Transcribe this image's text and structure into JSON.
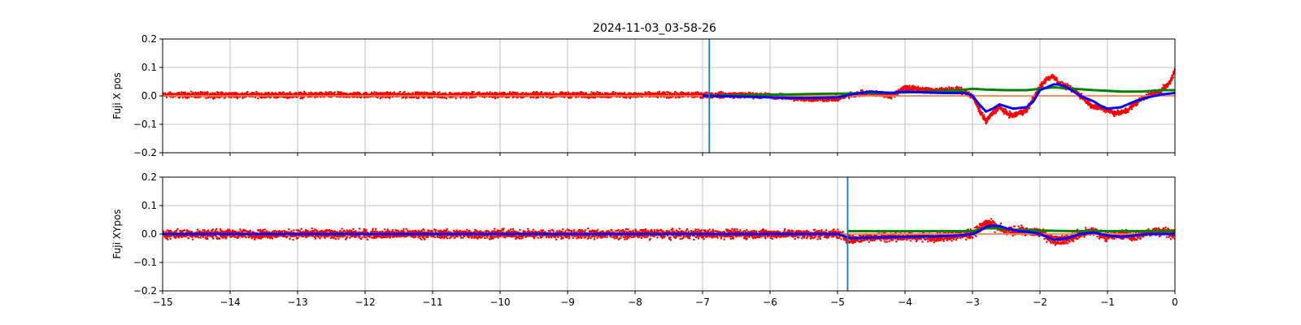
{
  "title": "2024-11-03_03-58-26",
  "chart_data": [
    {
      "type": "scatter",
      "ylabel": "Fuji X pos",
      "xlabel": "",
      "xlim": [
        -15,
        0
      ],
      "ylim": [
        -0.2,
        0.2
      ],
      "x_ticks": [
        -15,
        -14,
        -13,
        -12,
        -11,
        -10,
        -9,
        -8,
        -7,
        -6,
        -5,
        -4,
        -3,
        -2,
        -1,
        0
      ],
      "y_ticks": [
        -0.2,
        -0.1,
        0.0,
        0.1,
        0.2
      ],
      "x_tick_labels_visible": false,
      "grid": true,
      "vline": {
        "x": -6.9,
        "color": "#1f77b4"
      },
      "colors": {
        "raw": "#ff0000",
        "smooth": "#0000ff",
        "trend": "#008000",
        "baseline": "#ff7f50"
      },
      "series": [
        {
          "role": "raw",
          "noise": 0.008,
          "x": [
            -15,
            -7,
            -6.5,
            -6,
            -5.5,
            -5,
            -4.8,
            -4.5,
            -4.2,
            -4,
            -3.7,
            -3.4,
            -3.2,
            -3,
            -2.9,
            -2.8,
            -2.7,
            -2.6,
            -2.5,
            -2.4,
            -2.2,
            -2,
            -1.9,
            -1.8,
            -1.7,
            -1.6,
            -1.5,
            -1.4,
            -1.3,
            -1.2,
            -1.1,
            -1,
            -0.9,
            -0.8,
            -0.7,
            -0.6,
            -0.5,
            -0.4,
            -0.3,
            -0.2,
            -0.1,
            -0.05,
            0
          ],
          "y": [
            0.003,
            0.003,
            0.003,
            0.0,
            -0.01,
            -0.01,
            0.005,
            0.01,
            0.0,
            0.03,
            0.02,
            0.02,
            0.02,
            0.0,
            -0.05,
            -0.09,
            -0.06,
            -0.04,
            -0.06,
            -0.07,
            -0.05,
            0.03,
            0.06,
            0.07,
            0.04,
            0.03,
            0.02,
            0.0,
            -0.02,
            -0.04,
            -0.04,
            -0.05,
            -0.06,
            -0.06,
            -0.05,
            -0.03,
            -0.01,
            0.0,
            0.01,
            0.02,
            0.04,
            0.06,
            0.09
          ]
        },
        {
          "role": "smooth",
          "x": [
            -7,
            -6.5,
            -6,
            -5.5,
            -5,
            -4.8,
            -4.5,
            -4.2,
            -4,
            -3.7,
            -3.4,
            -3.1,
            -3,
            -2.9,
            -2.8,
            -2.7,
            -2.6,
            -2.4,
            -2.2,
            -2.1,
            -2,
            -1.8,
            -1.7,
            -1.6,
            -1.4,
            -1.2,
            -1.1,
            -1,
            -0.8,
            -0.6,
            -0.4,
            -0.2,
            0
          ],
          "y": [
            0.0,
            -0.002,
            -0.005,
            -0.008,
            -0.005,
            0.005,
            0.015,
            0.01,
            0.015,
            0.012,
            0.01,
            0.01,
            0.0,
            -0.03,
            -0.055,
            -0.045,
            -0.03,
            -0.045,
            -0.04,
            -0.02,
            0.02,
            0.04,
            0.04,
            0.03,
            0.0,
            -0.02,
            -0.035,
            -0.045,
            -0.04,
            -0.02,
            -0.005,
            0.005,
            0.01
          ]
        },
        {
          "role": "trend",
          "x": [
            -7,
            -6.5,
            -6,
            -5.5,
            -5,
            -4.5,
            -4,
            -3.5,
            -3.2,
            -3,
            -2.8,
            -2.5,
            -2.2,
            -2,
            -1.8,
            -1.5,
            -1.2,
            -1,
            -0.8,
            -0.5,
            -0.2,
            0
          ],
          "y": [
            0.0,
            0.002,
            0.004,
            0.006,
            0.008,
            0.01,
            0.012,
            0.016,
            0.02,
            0.025,
            0.022,
            0.02,
            0.02,
            0.025,
            0.03,
            0.025,
            0.02,
            0.018,
            0.015,
            0.015,
            0.02,
            0.02
          ]
        },
        {
          "role": "baseline",
          "x": [
            -15,
            0
          ],
          "y": [
            0.0,
            0.0
          ]
        }
      ]
    },
    {
      "type": "scatter",
      "ylabel": "Fuji XYpos",
      "xlabel": "",
      "xlim": [
        -15,
        0
      ],
      "ylim": [
        -0.2,
        0.2
      ],
      "x_ticks": [
        -15,
        -14,
        -13,
        -12,
        -11,
        -10,
        -9,
        -8,
        -7,
        -6,
        -5,
        -4,
        -3,
        -2,
        -1,
        0
      ],
      "x_tick_labels": [
        "−15",
        "−14",
        "−13",
        "−12",
        "−11",
        "−10",
        "−9",
        "−8",
        "−7",
        "−6",
        "−5",
        "−4",
        "−3",
        "−2",
        "−1",
        "0"
      ],
      "y_ticks": [
        -0.2,
        -0.1,
        0.0,
        0.1,
        0.2
      ],
      "grid": true,
      "vline": {
        "x": -4.85,
        "color": "#1f77b4"
      },
      "colors": {
        "raw": "#ff0000",
        "smooth": "#0000ff",
        "trend": "#008000",
        "baseline": "#ff7f50"
      },
      "series": [
        {
          "role": "raw",
          "noise": 0.013,
          "x": [
            -15,
            -5,
            -4.8,
            -4.5,
            -4,
            -3.5,
            -3,
            -2.9,
            -2.8,
            -2.7,
            -2.6,
            -2.5,
            -2.3,
            -2,
            -1.8,
            -1.6,
            -1.4,
            -1.2,
            -1,
            -0.8,
            -0.6,
            -0.4,
            -0.2,
            0
          ],
          "y": [
            0.0,
            0.0,
            -0.02,
            -0.01,
            -0.01,
            -0.01,
            0.0,
            0.02,
            0.04,
            0.03,
            0.02,
            0.01,
            0.01,
            0.005,
            -0.02,
            -0.02,
            0.0,
            0.01,
            -0.01,
            0.0,
            -0.01,
            0.005,
            0.01,
            0.0
          ]
        },
        {
          "role": "smooth",
          "x": [
            -15,
            -5,
            -4.8,
            -4.5,
            -4,
            -3.5,
            -3.2,
            -3,
            -2.9,
            -2.8,
            -2.7,
            -2.6,
            -2.5,
            -2.3,
            -2.1,
            -2,
            -1.8,
            -1.6,
            -1.4,
            -1.2,
            -1,
            -0.8,
            -0.6,
            -0.4,
            -0.2,
            0
          ],
          "y": [
            0.0,
            0.0,
            -0.015,
            -0.012,
            -0.01,
            -0.008,
            -0.005,
            0.0,
            0.01,
            0.025,
            0.03,
            0.028,
            0.02,
            0.01,
            0.005,
            0.0,
            -0.02,
            -0.015,
            0.0,
            0.005,
            -0.005,
            -0.01,
            -0.005,
            0.0,
            0.0,
            0.0
          ]
        },
        {
          "role": "trend",
          "x": [
            -4.85,
            -4.5,
            -4,
            -3.5,
            -3,
            -2.8,
            -2.6,
            -2.4,
            -2,
            -1.5,
            -1,
            -0.5,
            0
          ],
          "y": [
            0.01,
            0.01,
            0.01,
            0.01,
            0.01,
            0.02,
            0.02,
            0.015,
            0.012,
            0.01,
            0.01,
            0.01,
            0.01
          ]
        },
        {
          "role": "baseline",
          "x": [
            -15,
            0
          ],
          "y": [
            0.0,
            0.0
          ]
        }
      ]
    }
  ]
}
